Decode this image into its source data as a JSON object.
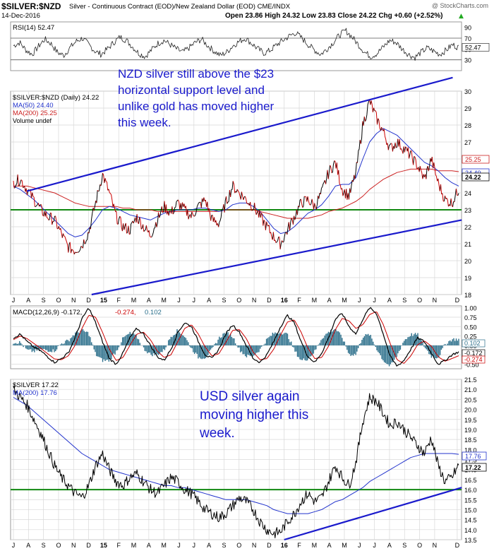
{
  "header": {
    "symbol": "$SILVER:$NZD",
    "description": "Silver - Continuous Contract (EOD)/New Zealand Dollar (EOD)  CME/INDX",
    "watermark": "@ StockCharts.com",
    "date": "14-Dec-2016",
    "ohlc": "Open 23.86  High 24.32  Low 23.83  Close 24.22  Chg +0.60 (+2.52%)",
    "chg_arrow": "▲"
  },
  "colors": {
    "price": "#000000",
    "down": "#cc0000",
    "ma50": "#2233cc",
    "ma200": "#cc2222",
    "trend": "#1a1acc",
    "support": "#118811",
    "annotation": "#1a1acc",
    "macd_hist": "#2a6e8a",
    "grid": "#d8d8d8"
  },
  "chart_data": [
    {
      "type": "line",
      "panel": "rsi",
      "legend": "RSI(14) 52.47",
      "ylim": [
        10,
        100
      ],
      "ticks": [
        30,
        50,
        70,
        90
      ],
      "last_label": "52.47",
      "reference_lines": [
        30,
        70
      ],
      "values": [
        56,
        62,
        48,
        40,
        55,
        68,
        60,
        44,
        38,
        52,
        64,
        70,
        58,
        46,
        40,
        50,
        62,
        72,
        66,
        54,
        42,
        36,
        48,
        60,
        66,
        58,
        50,
        44,
        52,
        62,
        68,
        56,
        46,
        38,
        44,
        56,
        64,
        70,
        60,
        50,
        42,
        48,
        58,
        66,
        74,
        80,
        70,
        58,
        48,
        40,
        50,
        62,
        76,
        84,
        72,
        58,
        44,
        36,
        42,
        54,
        66,
        62,
        50,
        40,
        34,
        44,
        52,
        46,
        40,
        48,
        58,
        52.47
      ]
    },
    {
      "type": "line",
      "panel": "nzd_price",
      "legend": [
        "$SILVER:$NZD (Daily) 24.22",
        "MA(50) 24.40",
        "MA(200) 25.25",
        "Volume undef"
      ],
      "ylim": [
        18,
        30
      ],
      "ticks": [
        18,
        19,
        20,
        21,
        22,
        23,
        24,
        25,
        26,
        27,
        28,
        29,
        30
      ],
      "price_labels": [
        "25.25",
        "24.40",
        "24.22"
      ],
      "x_ticks": [
        "J",
        "A",
        "S",
        "O",
        "N",
        "D",
        "15",
        "F",
        "M",
        "A",
        "M",
        "J",
        "J",
        "A",
        "S",
        "O",
        "N",
        "D",
        "16",
        "F",
        "M",
        "A",
        "M",
        "J",
        "J",
        "A",
        "S",
        "O",
        "N",
        "D"
      ],
      "x_months": [
        0,
        1,
        2,
        3,
        4,
        5,
        6,
        7,
        8,
        9,
        10,
        11,
        12,
        13,
        14,
        15,
        16,
        17,
        18,
        19,
        20,
        21,
        22,
        23,
        24,
        25,
        26,
        27,
        28,
        29.5
      ],
      "price": [
        24.6,
        24.8,
        24.2,
        23.6,
        23.0,
        22.6,
        22.4,
        21.6,
        20.8,
        20.6,
        20.9,
        21.7,
        23.4,
        25.1,
        24.0,
        22.6,
        22.0,
        21.8,
        22.6,
        22.0,
        21.5,
        22.4,
        23.2,
        22.8,
        23.4,
        23.0,
        22.6,
        23.2,
        23.6,
        22.4,
        22.2,
        23.4,
        24.4,
        24.0,
        23.6,
        23.2,
        22.6,
        22.0,
        21.4,
        21.0,
        21.8,
        22.6,
        23.4,
        23.6,
        23.2,
        24.0,
        25.2,
        25.8,
        24.2,
        23.8,
        25.2,
        28.0,
        29.4,
        28.4,
        27.6,
        26.6,
        27.0,
        26.6,
        26.2,
        25.6,
        24.8,
        26.0,
        24.6,
        23.6,
        23.4,
        24.22
      ],
      "ma50": [
        24.4,
        24.2,
        23.9,
        23.6,
        23.2,
        22.8,
        22.4,
        22.0,
        21.6,
        21.4,
        21.5,
        21.9,
        22.4,
        23.0,
        23.2,
        23.1,
        22.9,
        22.7,
        22.6,
        22.5,
        22.4,
        22.6,
        22.8,
        22.9,
        23.0,
        23.0,
        23.0,
        23.1,
        23.1,
        23.0,
        22.9,
        23.0,
        23.3,
        23.4,
        23.4,
        23.2,
        22.9,
        22.4,
        21.9,
        21.6,
        21.7,
        22.0,
        22.4,
        22.8,
        23.0,
        23.3,
        23.8,
        24.4,
        24.5,
        24.5,
        24.9,
        26.0,
        27.0,
        27.5,
        27.8,
        27.6,
        27.4,
        27.0,
        26.6,
        26.2,
        25.8,
        25.6,
        25.3,
        24.9,
        24.6,
        24.4
      ],
      "ma200": [
        24.4,
        24.4,
        24.4,
        24.3,
        24.2,
        24.1,
        24.0,
        23.8,
        23.6,
        23.4,
        23.3,
        23.2,
        23.2,
        23.2,
        23.2,
        23.2,
        23.1,
        23.1,
        23.0,
        23.0,
        23.0,
        22.9,
        22.9,
        22.9,
        22.9,
        22.9,
        22.9,
        22.9,
        22.9,
        22.9,
        22.9,
        23.0,
        23.0,
        23.0,
        23.0,
        23.0,
        22.9,
        22.8,
        22.7,
        22.6,
        22.5,
        22.5,
        22.5,
        22.5,
        22.6,
        22.7,
        22.9,
        23.0,
        23.1,
        23.3,
        23.5,
        23.8,
        24.2,
        24.5,
        24.8,
        25.0,
        25.2,
        25.3,
        25.4,
        25.4,
        25.4,
        25.4,
        25.3,
        25.3,
        25.3,
        25.25
      ],
      "support": 23.0,
      "trend_upper": [
        [
          0.9,
          24.1
        ],
        [
          29.2,
          30.8
        ]
      ],
      "trend_lower": [
        [
          5.2,
          18.0
        ],
        [
          29.8,
          22.4
        ]
      ],
      "annotation": [
        "NZD silver still above the $23",
        "horizontal support level and",
        "unlike gold has moved higher",
        "this week."
      ]
    },
    {
      "type": "line",
      "panel": "macd",
      "legend": [
        "MACD(12,26,9) -0.172,",
        "-0.274,",
        "0.102"
      ],
      "ylim": [
        -0.62,
        1.05
      ],
      "ticks": [
        1.0,
        0.75,
        0.5,
        0.25,
        0.0,
        -0.25,
        -0.5
      ],
      "tick_labels": [
        "1.00",
        "0.75",
        "0.50",
        "0.25",
        "0.00",
        "-0.25",
        "-0.50"
      ],
      "value_labels": [
        "0.102",
        "-0.172",
        "-0.274"
      ],
      "macd": [
        0.2,
        0.3,
        0.1,
        -0.05,
        -0.15,
        -0.3,
        -0.45,
        -0.35,
        -0.2,
        0.2,
        0.7,
        1.0,
        0.6,
        0.1,
        -0.35,
        -0.5,
        -0.2,
        0.2,
        0.45,
        0.3,
        0.0,
        -0.3,
        -0.4,
        -0.1,
        0.35,
        0.6,
        0.5,
        0.1,
        -0.25,
        -0.35,
        -0.1,
        0.3,
        0.55,
        0.35,
        0.0,
        -0.35,
        -0.45,
        -0.25,
        0.1,
        0.5,
        0.8,
        0.6,
        0.1,
        -0.3,
        -0.45,
        -0.2,
        0.2,
        0.7,
        0.85,
        0.5,
        0.3,
        0.7,
        1.0,
        0.85,
        0.3,
        -0.3,
        -0.55,
        -0.4,
        -0.1,
        0.2,
        0.1,
        -0.2,
        -0.5,
        -0.4,
        -0.25,
        -0.172
      ],
      "signal": [
        0.15,
        0.25,
        0.18,
        0.05,
        -0.08,
        -0.22,
        -0.36,
        -0.38,
        -0.28,
        0.0,
        0.45,
        0.8,
        0.75,
        0.35,
        -0.1,
        -0.4,
        -0.32,
        0.0,
        0.3,
        0.35,
        0.15,
        -0.15,
        -0.32,
        -0.25,
        0.1,
        0.45,
        0.55,
        0.3,
        -0.05,
        -0.28,
        -0.22,
        0.08,
        0.4,
        0.42,
        0.18,
        -0.18,
        -0.38,
        -0.35,
        -0.1,
        0.28,
        0.62,
        0.68,
        0.35,
        -0.08,
        -0.35,
        -0.32,
        -0.02,
        0.42,
        0.72,
        0.65,
        0.45,
        0.55,
        0.82,
        0.9,
        0.55,
        0.05,
        -0.38,
        -0.48,
        -0.28,
        0.02,
        0.12,
        -0.02,
        -0.3,
        -0.42,
        -0.35,
        -0.274
      ]
    },
    {
      "type": "line",
      "panel": "usd_price",
      "legend": [
        "$SILVER 17.22",
        "MA(200) 17.76"
      ],
      "ylim": [
        13.5,
        21.5
      ],
      "ticks": [
        13.5,
        14.0,
        14.5,
        15.0,
        15.5,
        16.0,
        16.5,
        17.0,
        17.5,
        18.0,
        18.5,
        19.0,
        19.5,
        20.0,
        20.5,
        21.0,
        21.5
      ],
      "tick_labels": [
        "13.5",
        "14.0",
        "14.5",
        "15.0",
        "15.5",
        "16.0",
        "16.5",
        "17.0",
        "17.5",
        "18.0",
        "18.5",
        "19.0",
        "19.5",
        "20.0",
        "20.5",
        "21.0",
        "21.5"
      ],
      "price_labels": [
        "17.76",
        "17.22"
      ],
      "x_ticks": [
        "J",
        "A",
        "S",
        "O",
        "N",
        "D",
        "15",
        "F",
        "M",
        "A",
        "M",
        "J",
        "J",
        "A",
        "S",
        "O",
        "N",
        "D",
        "16",
        "F",
        "M",
        "A",
        "M",
        "J",
        "J",
        "A",
        "S",
        "O",
        "N",
        "D"
      ],
      "x_months": [
        0,
        1,
        2,
        3,
        4,
        5,
        6,
        7,
        8,
        9,
        10,
        11,
        12,
        13,
        14,
        15,
        16,
        17,
        18,
        19,
        20,
        21,
        22,
        23,
        24,
        25,
        26,
        27,
        28,
        29.5
      ],
      "price": [
        21.0,
        20.6,
        20.2,
        19.5,
        18.8,
        18.0,
        17.2,
        16.6,
        16.2,
        15.8,
        15.6,
        16.2,
        17.2,
        17.8,
        17.0,
        16.4,
        16.2,
        16.6,
        16.8,
        16.4,
        16.0,
        15.8,
        16.2,
        16.6,
        16.4,
        16.0,
        15.8,
        15.4,
        15.0,
        14.8,
        14.6,
        14.8,
        15.2,
        15.6,
        15.4,
        15.0,
        14.4,
        14.0,
        13.8,
        13.9,
        14.4,
        14.8,
        15.4,
        15.8,
        15.4,
        15.6,
        16.4,
        17.2,
        16.6,
        16.2,
        17.4,
        19.4,
        20.6,
        20.4,
        19.8,
        19.2,
        19.4,
        19.0,
        18.6,
        18.2,
        17.8,
        18.6,
        17.2,
        16.4,
        16.6,
        17.22
      ],
      "ma200": [
        20.6,
        20.4,
        20.2,
        19.9,
        19.6,
        19.3,
        19.0,
        18.7,
        18.4,
        18.1,
        17.8,
        17.6,
        17.4,
        17.2,
        17.0,
        16.9,
        16.8,
        16.7,
        16.6,
        16.5,
        16.4,
        16.3,
        16.2,
        16.2,
        16.1,
        16.1,
        16.0,
        15.9,
        15.8,
        15.7,
        15.6,
        15.5,
        15.5,
        15.5,
        15.5,
        15.4,
        15.3,
        15.2,
        15.0,
        14.9,
        14.8,
        14.8,
        14.8,
        14.8,
        14.9,
        15.0,
        15.2,
        15.4,
        15.5,
        15.7,
        15.9,
        16.1,
        16.4,
        16.6,
        16.8,
        17.0,
        17.2,
        17.4,
        17.6,
        17.7,
        17.8,
        17.8,
        17.8,
        17.8,
        17.8,
        17.76
      ],
      "support": 16.0,
      "trend_lower": [
        [
          18.0,
          13.5
        ],
        [
          29.8,
          16.1
        ]
      ],
      "annotation": [
        "USD silver again",
        "moving higher this",
        "week."
      ]
    }
  ]
}
